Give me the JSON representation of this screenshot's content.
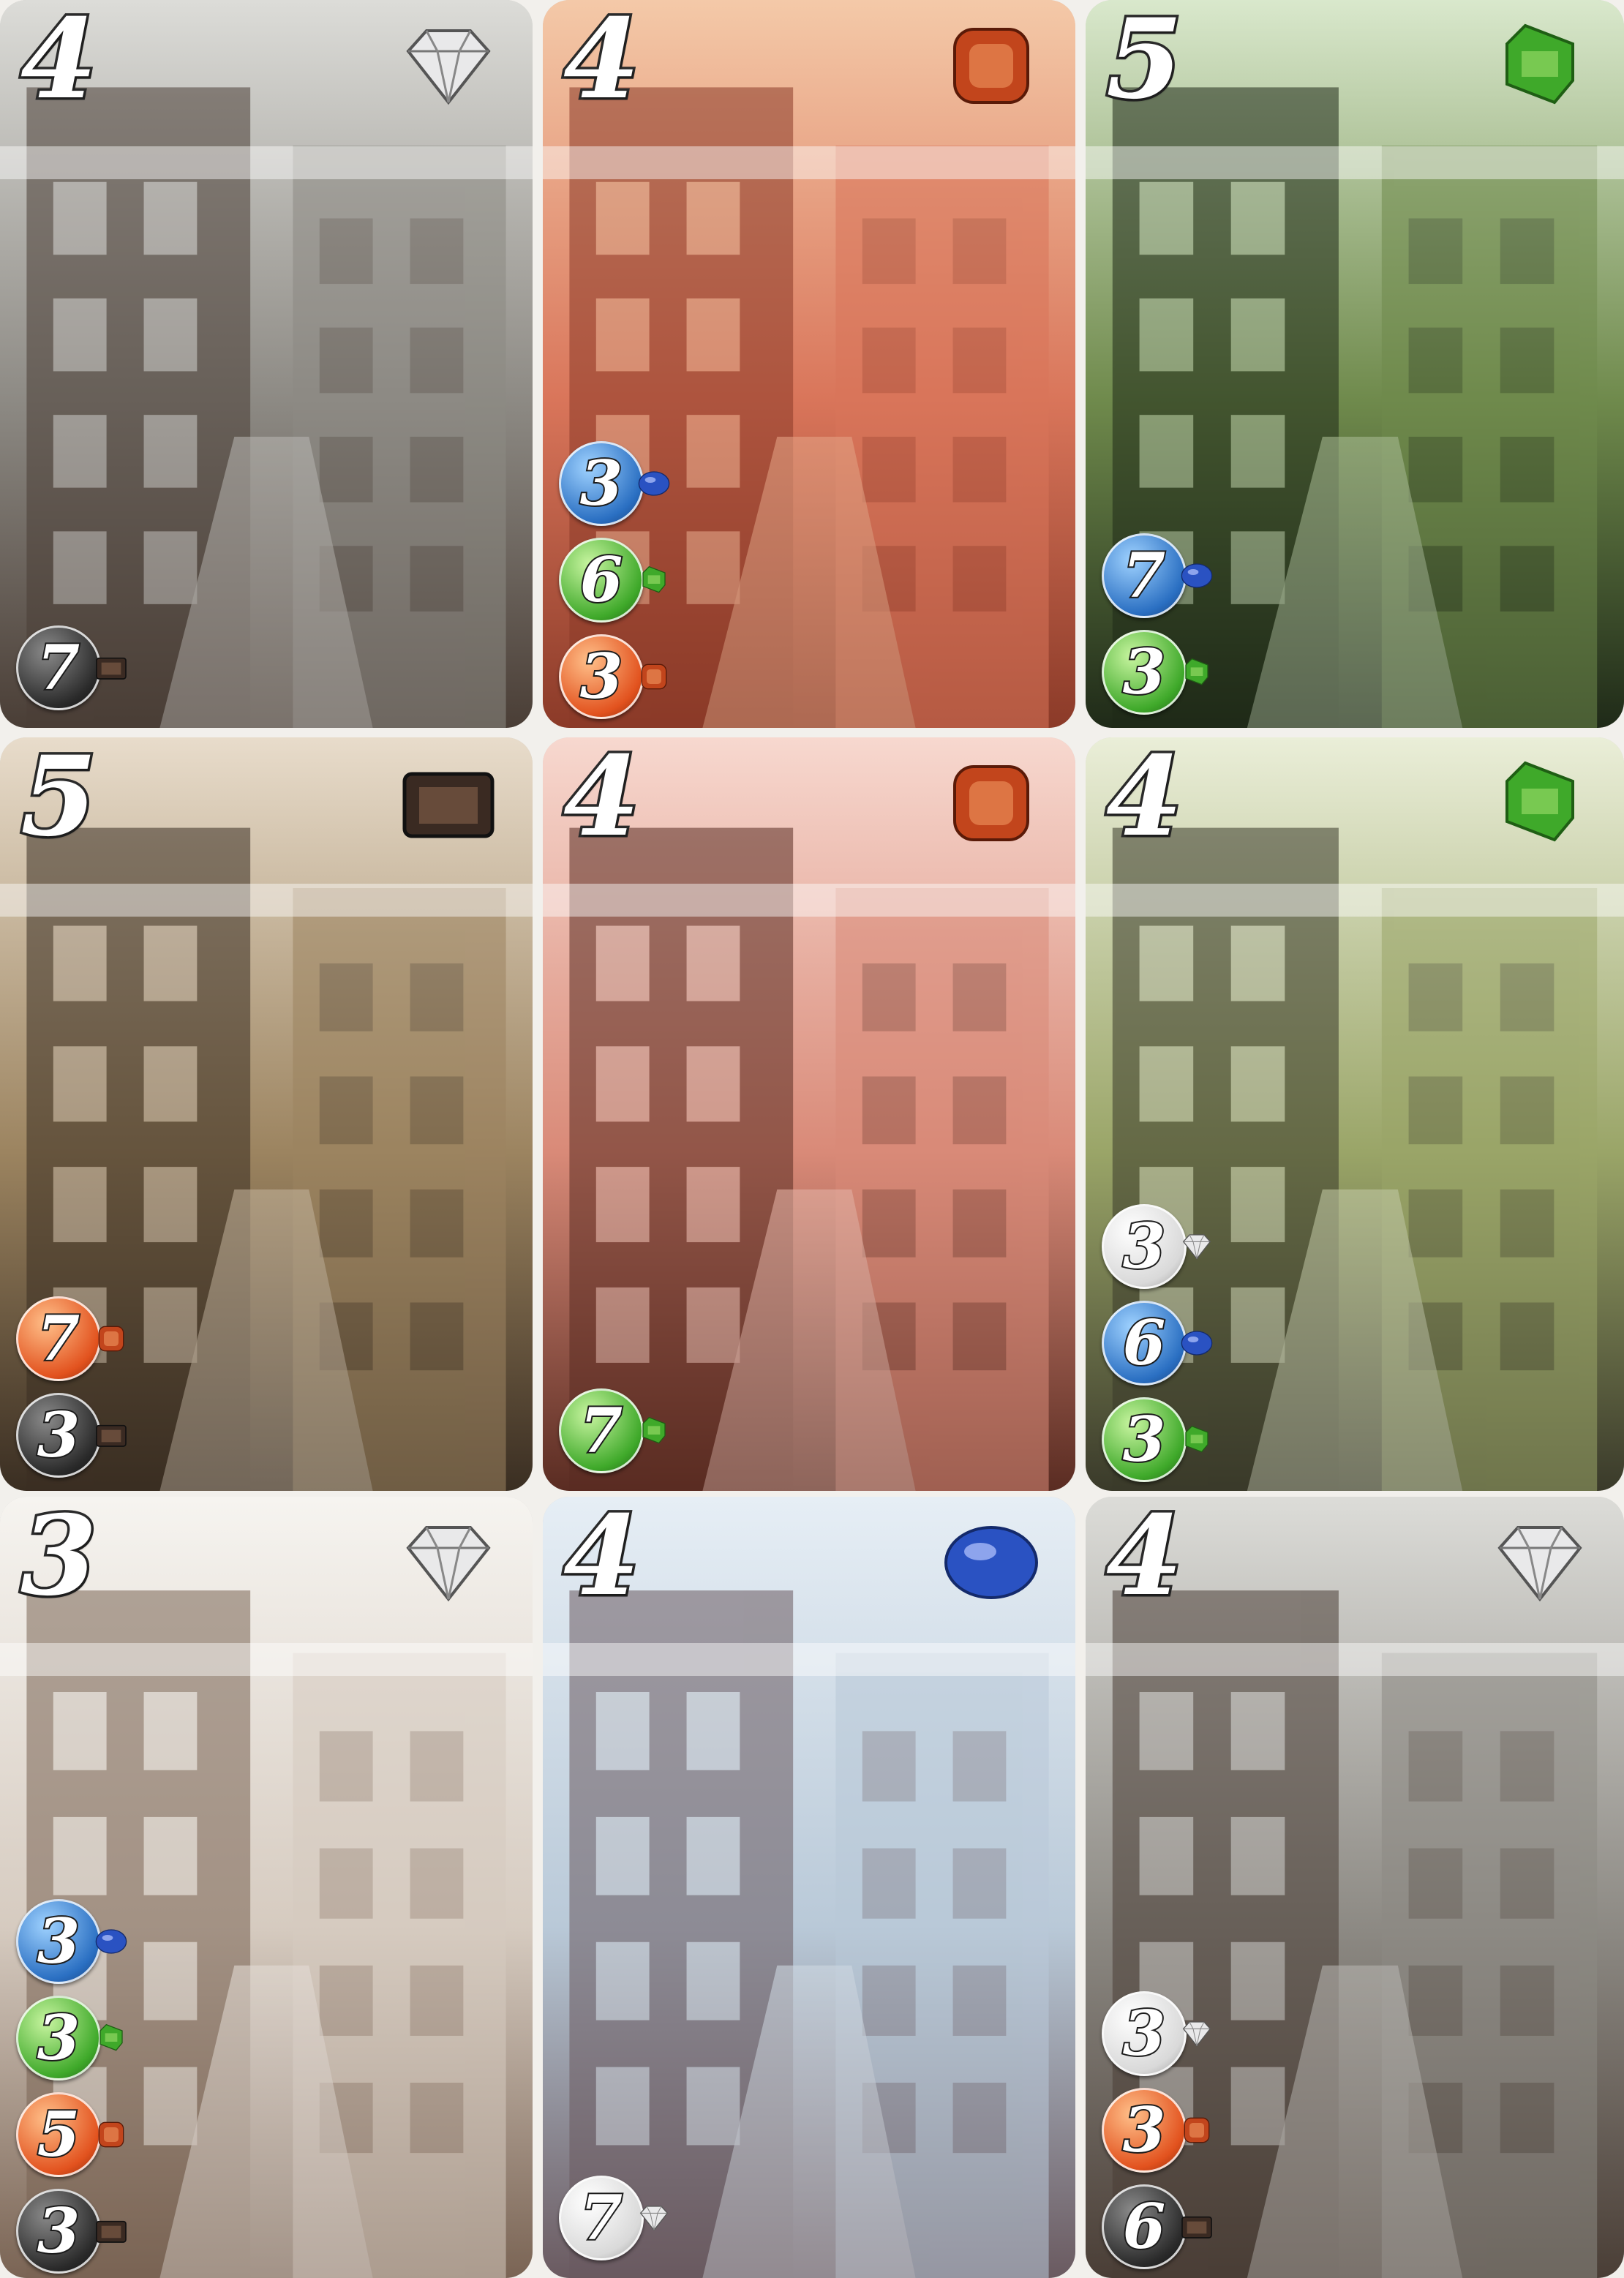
{
  "colors": {
    "white": "#e8e8e8",
    "red": "#c2451c",
    "green": "#3fa92a",
    "blue": "#2a52c2",
    "black": "#3a2a22"
  },
  "cards": [
    {
      "value": "4",
      "gem": "white",
      "theme": "grey-jewelry-street",
      "costs": [
        {
          "n": "7",
          "gem": "black"
        }
      ]
    },
    {
      "value": "4",
      "gem": "red",
      "theme": "red-gothic-tower",
      "costs": [
        {
          "n": "3",
          "gem": "blue"
        },
        {
          "n": "6",
          "gem": "green"
        },
        {
          "n": "3",
          "gem": "red"
        }
      ]
    },
    {
      "value": "5",
      "gem": "green",
      "theme": "green-tudor-house",
      "costs": [
        {
          "n": "7",
          "gem": "blue"
        },
        {
          "n": "3",
          "gem": "green"
        }
      ]
    },
    {
      "value": "5",
      "gem": "black",
      "theme": "brown-alley",
      "costs": [
        {
          "n": "7",
          "gem": "red"
        },
        {
          "n": "3",
          "gem": "black"
        }
      ]
    },
    {
      "value": "4",
      "gem": "red",
      "theme": "red-equestrian-statue",
      "costs": [
        {
          "n": "7",
          "gem": "green"
        }
      ]
    },
    {
      "value": "4",
      "gem": "green",
      "theme": "green-canal-bridge",
      "costs": [
        {
          "n": "3",
          "gem": "white"
        },
        {
          "n": "6",
          "gem": "blue"
        },
        {
          "n": "3",
          "gem": "green"
        }
      ]
    },
    {
      "value": "3",
      "gem": "white",
      "theme": "white-arcade",
      "costs": [
        {
          "n": "3",
          "gem": "blue"
        },
        {
          "n": "3",
          "gem": "green"
        },
        {
          "n": "5",
          "gem": "red"
        },
        {
          "n": "3",
          "gem": "black"
        }
      ]
    },
    {
      "value": "4",
      "gem": "blue",
      "theme": "blue-onion-domes",
      "costs": [
        {
          "n": "7",
          "gem": "white"
        }
      ]
    },
    {
      "value": "4",
      "gem": "white",
      "theme": "grey-jewelry-street",
      "costs": [
        {
          "n": "3",
          "gem": "white"
        },
        {
          "n": "3",
          "gem": "red"
        },
        {
          "n": "6",
          "gem": "black"
        }
      ]
    }
  ]
}
